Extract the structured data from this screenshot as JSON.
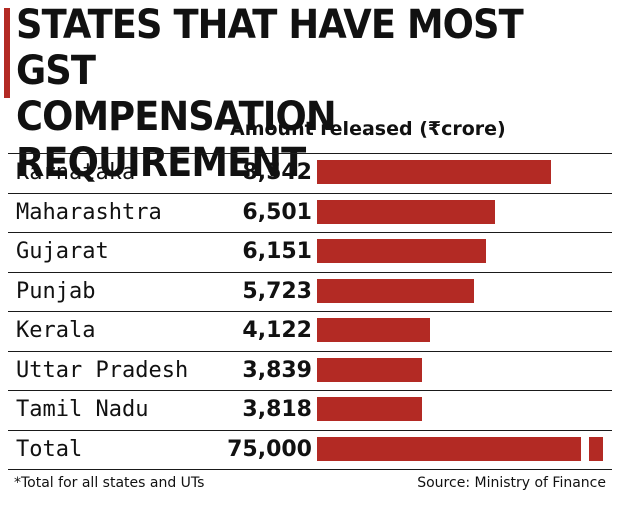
{
  "title_lines": [
    "STATES THAT HAVE MOST GST",
    "COMPENSATION REQUIREMENT"
  ],
  "column_header": "Amount released (₹crore)",
  "footnote": "*Total for all states and UTs",
  "source": "Source: Ministry of Finance",
  "colors": {
    "bar": "#b32a24",
    "text": "#111111"
  },
  "chart_data": {
    "type": "bar",
    "orientation": "horizontal",
    "categories": [
      "Karnataka",
      "Maharashtra",
      "Gujarat",
      "Punjab",
      "Kerala",
      "Uttar Pradesh",
      "Tamil Nadu",
      "Total"
    ],
    "values": [
      8542,
      6501,
      6151,
      5723,
      4122,
      3839,
      3818,
      75000
    ],
    "value_labels": [
      "8,542",
      "6,501",
      "6,151",
      "5,723",
      "4,122",
      "3,839",
      "3,818",
      "75,000"
    ],
    "broken_axis_categories": [
      "Total"
    ],
    "xlim": [
      0,
      10500
    ],
    "grid": false,
    "legend": "none"
  }
}
